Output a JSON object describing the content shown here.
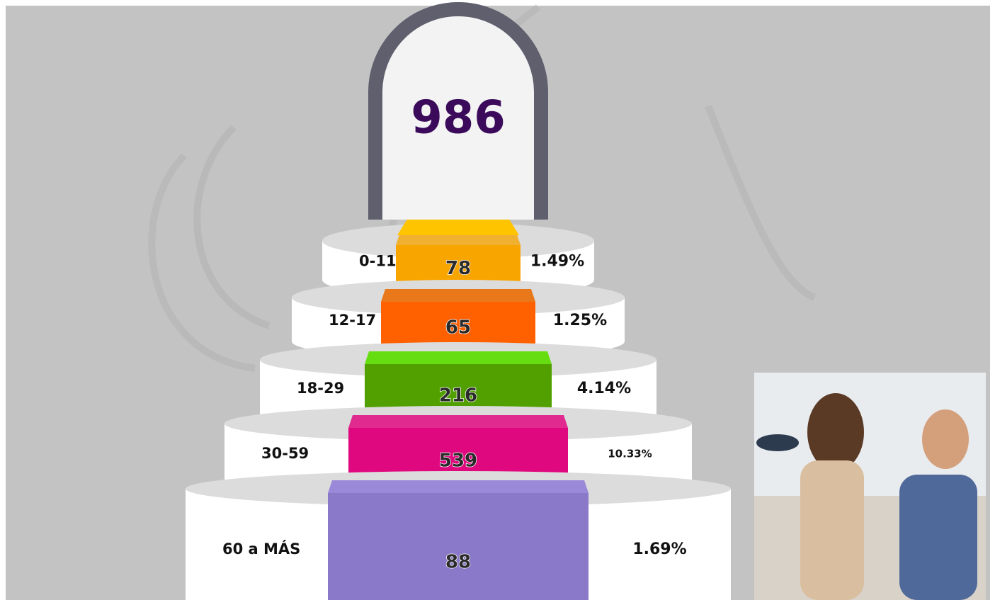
{
  "total": "986",
  "tiers": [
    {
      "label": "0-11",
      "count": "78",
      "percent": "1.49%"
    },
    {
      "label": "12-17",
      "count": "65",
      "percent": "1.25%"
    },
    {
      "label": "18-29",
      "count": "216",
      "percent": "4.14%"
    },
    {
      "label": "30-59",
      "count": "539",
      "percent": "10.33%"
    },
    {
      "label": "60 a MÁS",
      "count": "88",
      "percent": "1.69%"
    }
  ]
}
